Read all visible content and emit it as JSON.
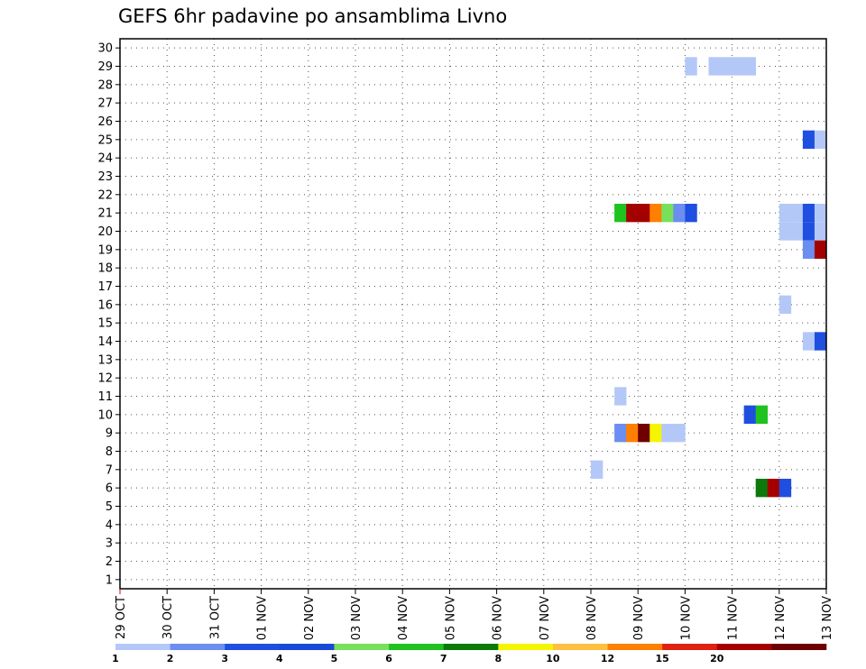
{
  "chart_data": {
    "type": "heatmap",
    "title": "GEFS 6hr padavine po ansamblima Livno",
    "xlabel": "",
    "ylabel": "",
    "x_ticks": [
      "29 OCT",
      "30 OCT",
      "31 OCT",
      "01 NOV",
      "02 NOV",
      "03 NOV",
      "04 NOV",
      "05 NOV",
      "06 NOV",
      "07 NOV",
      "08 NOV",
      "09 NOV",
      "10 NOV",
      "11 NOV",
      "12 NOV",
      "13 NOV"
    ],
    "y_ticks": [
      "1",
      "2",
      "3",
      "4",
      "5",
      "6",
      "7",
      "8",
      "9",
      "10",
      "11",
      "12",
      "13",
      "14",
      "15",
      "16",
      "17",
      "18",
      "19",
      "20",
      "21",
      "22",
      "23",
      "24",
      "25",
      "26",
      "27",
      "28",
      "29",
      "30"
    ],
    "xlim_days": [
      0,
      15
    ],
    "ylim": [
      0.5,
      30.5
    ],
    "step_hours": 6,
    "grid": true,
    "legend": {
      "placement": "bottom",
      "colors": [
        "#b4c8f8",
        "#6b8ef0",
        "#1f4fe0",
        "#1a49d8",
        "#78e05a",
        "#1fc21f",
        "#0b7a0b",
        "#f5f500",
        "#ffbf40",
        "#ff7f00",
        "#e02010",
        "#a50000",
        "#6e0000"
      ],
      "labels": [
        "1",
        "2",
        "3",
        "4",
        "5",
        "6",
        "7",
        "8",
        "10",
        "12",
        "15",
        "20"
      ]
    },
    "cells": [
      {
        "day": 10.0,
        "member": 7,
        "color": "#b4c8f8"
      },
      {
        "day": 10.5,
        "member": 9,
        "color": "#6b8ef0"
      },
      {
        "day": 10.75,
        "member": 9,
        "color": "#ff7f00"
      },
      {
        "day": 11.0,
        "member": 9,
        "color": "#6e0000"
      },
      {
        "day": 11.25,
        "member": 9,
        "color": "#f5f500"
      },
      {
        "day": 11.5,
        "member": 9,
        "color": "#b4c8f8"
      },
      {
        "day": 11.75,
        "member": 9,
        "color": "#b4c8f8"
      },
      {
        "day": 10.5,
        "member": 11,
        "color": "#b4c8f8"
      },
      {
        "day": 10.5,
        "member": 21,
        "color": "#1fc21f"
      },
      {
        "day": 10.75,
        "member": 21,
        "color": "#a50000"
      },
      {
        "day": 11.0,
        "member": 21,
        "color": "#a50000"
      },
      {
        "day": 11.25,
        "member": 21,
        "color": "#ff7f00"
      },
      {
        "day": 11.5,
        "member": 21,
        "color": "#78e05a"
      },
      {
        "day": 11.75,
        "member": 21,
        "color": "#6b8ef0"
      },
      {
        "day": 12.0,
        "member": 21,
        "color": "#1f4fe0"
      },
      {
        "day": 12.0,
        "member": 29,
        "color": "#b4c8f8"
      },
      {
        "day": 12.5,
        "member": 29,
        "color": "#b4c8f8"
      },
      {
        "day": 12.75,
        "member": 29,
        "color": "#b4c8f8"
      },
      {
        "day": 13.0,
        "member": 29,
        "color": "#b4c8f8"
      },
      {
        "day": 13.25,
        "member": 29,
        "color": "#b4c8f8"
      },
      {
        "day": 13.25,
        "member": 10,
        "color": "#1f4fe0"
      },
      {
        "day": 13.5,
        "member": 10,
        "color": "#1fc21f"
      },
      {
        "day": 13.5,
        "member": 6,
        "color": "#0b7a0b"
      },
      {
        "day": 13.75,
        "member": 6,
        "color": "#a50000"
      },
      {
        "day": 14.0,
        "member": 6,
        "color": "#1f4fe0"
      },
      {
        "day": 14.0,
        "member": 16,
        "color": "#b4c8f8"
      },
      {
        "day": 14.0,
        "member": 21,
        "color": "#b4c8f8"
      },
      {
        "day": 14.25,
        "member": 21,
        "color": "#b4c8f8"
      },
      {
        "day": 14.5,
        "member": 21,
        "color": "#1f4fe0"
      },
      {
        "day": 14.75,
        "member": 21,
        "color": "#b4c8f8"
      },
      {
        "day": 14.0,
        "member": 20,
        "color": "#b4c8f8"
      },
      {
        "day": 14.25,
        "member": 20,
        "color": "#b4c8f8"
      },
      {
        "day": 14.5,
        "member": 20,
        "color": "#1f4fe0"
      },
      {
        "day": 14.75,
        "member": 20,
        "color": "#b4c8f8"
      },
      {
        "day": 14.5,
        "member": 19,
        "color": "#6b8ef0"
      },
      {
        "day": 14.75,
        "member": 19,
        "color": "#a50000"
      },
      {
        "day": 14.5,
        "member": 25,
        "color": "#1f4fe0"
      },
      {
        "day": 14.75,
        "member": 25,
        "color": "#b4c8f8"
      },
      {
        "day": 14.5,
        "member": 14,
        "color": "#b4c8f8"
      },
      {
        "day": 14.75,
        "member": 14,
        "color": "#1f4fe0"
      }
    ]
  }
}
